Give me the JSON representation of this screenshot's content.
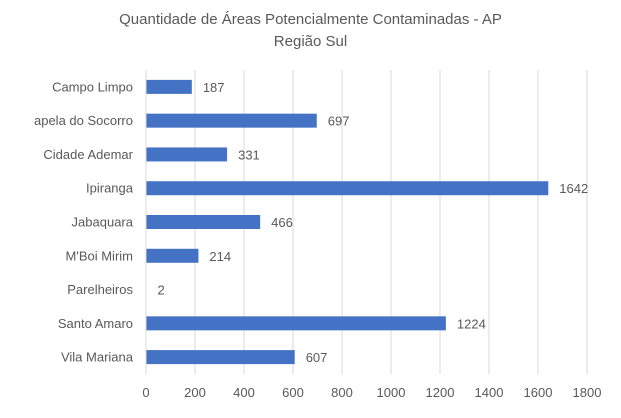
{
  "chart_data": {
    "type": "bar",
    "orientation": "horizontal",
    "title": [
      "Quantidade de Áreas Potencialmente Contaminadas - AP",
      "Região Sul"
    ],
    "categories": [
      "Campo Limpo",
      "apela do Socorro",
      "Cidade Ademar",
      "Ipiranga",
      "Jabaquara",
      "M'Boi Mirim",
      "Parelheiros",
      "Santo Amaro",
      "Vila Mariana"
    ],
    "values": [
      187,
      697,
      331,
      1642,
      466,
      214,
      2,
      1224,
      607
    ],
    "xlim": [
      0,
      1800
    ],
    "xticks": [
      "0",
      "200",
      "400",
      "600",
      "800",
      "1000",
      "1200",
      "1400",
      "1600",
      "1800"
    ],
    "grid": "vertical",
    "legend": "none",
    "colors": {
      "bar": "#4472C4",
      "grid": "#D9D9D9",
      "text": "#595959"
    }
  }
}
